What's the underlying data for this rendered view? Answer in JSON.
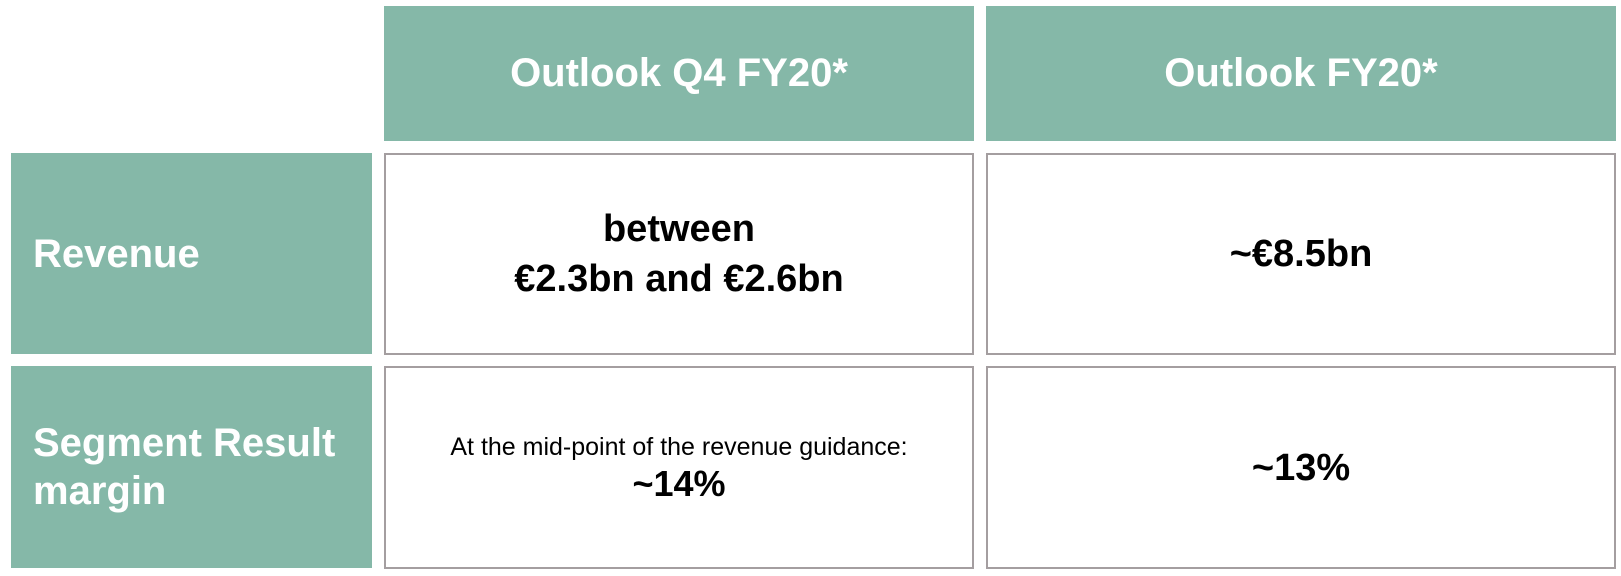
{
  "columns": {
    "q4": "Outlook Q4 FY20*",
    "fy": "Outlook FY20*"
  },
  "rows": {
    "revenue": {
      "label": "Revenue",
      "q4_line1": "between",
      "q4_line2": "€2.3bn and €2.6bn",
      "fy": "~€8.5bn"
    },
    "margin": {
      "label_line1": "Segment Result",
      "label_line2": "margin",
      "q4_note": "At the mid-point of the revenue guidance:",
      "q4_value": "~14%",
      "fy": "~13%"
    }
  },
  "colors": {
    "accent": "#85b8a8",
    "border": "#a49ea0"
  }
}
